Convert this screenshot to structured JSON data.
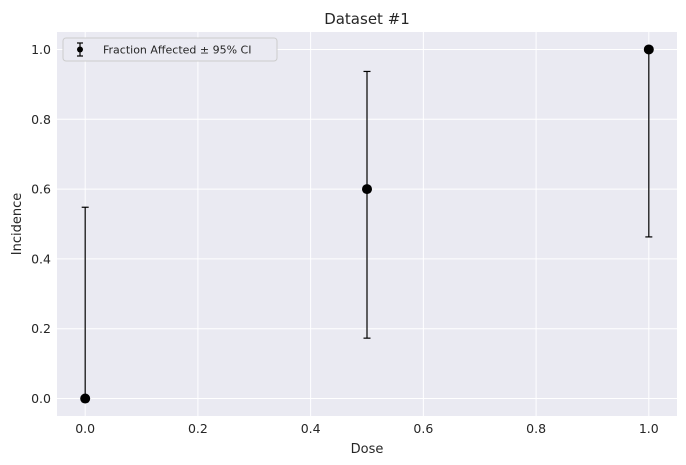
{
  "chart_data": {
    "type": "scatter",
    "title": "Dataset #1",
    "xlabel": "Dose",
    "ylabel": "Incidence",
    "xlim": [
      -0.05,
      1.05
    ],
    "ylim": [
      -0.05,
      1.05
    ],
    "xticks": [
      0.0,
      0.2,
      0.4,
      0.6,
      0.8,
      1.0
    ],
    "xtick_labels": [
      "0.0",
      "0.2",
      "0.4",
      "0.6",
      "0.8",
      "1.0"
    ],
    "yticks": [
      0.0,
      0.2,
      0.4,
      0.6,
      0.8,
      1.0
    ],
    "ytick_labels": [
      "0.0",
      "0.2",
      "0.4",
      "0.6",
      "0.8",
      "1.0"
    ],
    "grid": true,
    "legend_position": "top-left",
    "series": [
      {
        "name": "Fraction Affected ± 95% CI",
        "color": "#000000",
        "points": [
          {
            "x": 0.0,
            "y": 0.0,
            "ci_low": 0.0,
            "ci_high": 0.548
          },
          {
            "x": 0.5,
            "y": 0.6,
            "ci_low": 0.173,
            "ci_high": 0.937
          },
          {
            "x": 1.0,
            "y": 1.0,
            "ci_low": 0.463,
            "ci_high": 1.0
          }
        ]
      }
    ],
    "colors": {
      "plot_background": "#eaeaf2",
      "grid": "#ffffff",
      "marker": "#000000"
    }
  }
}
